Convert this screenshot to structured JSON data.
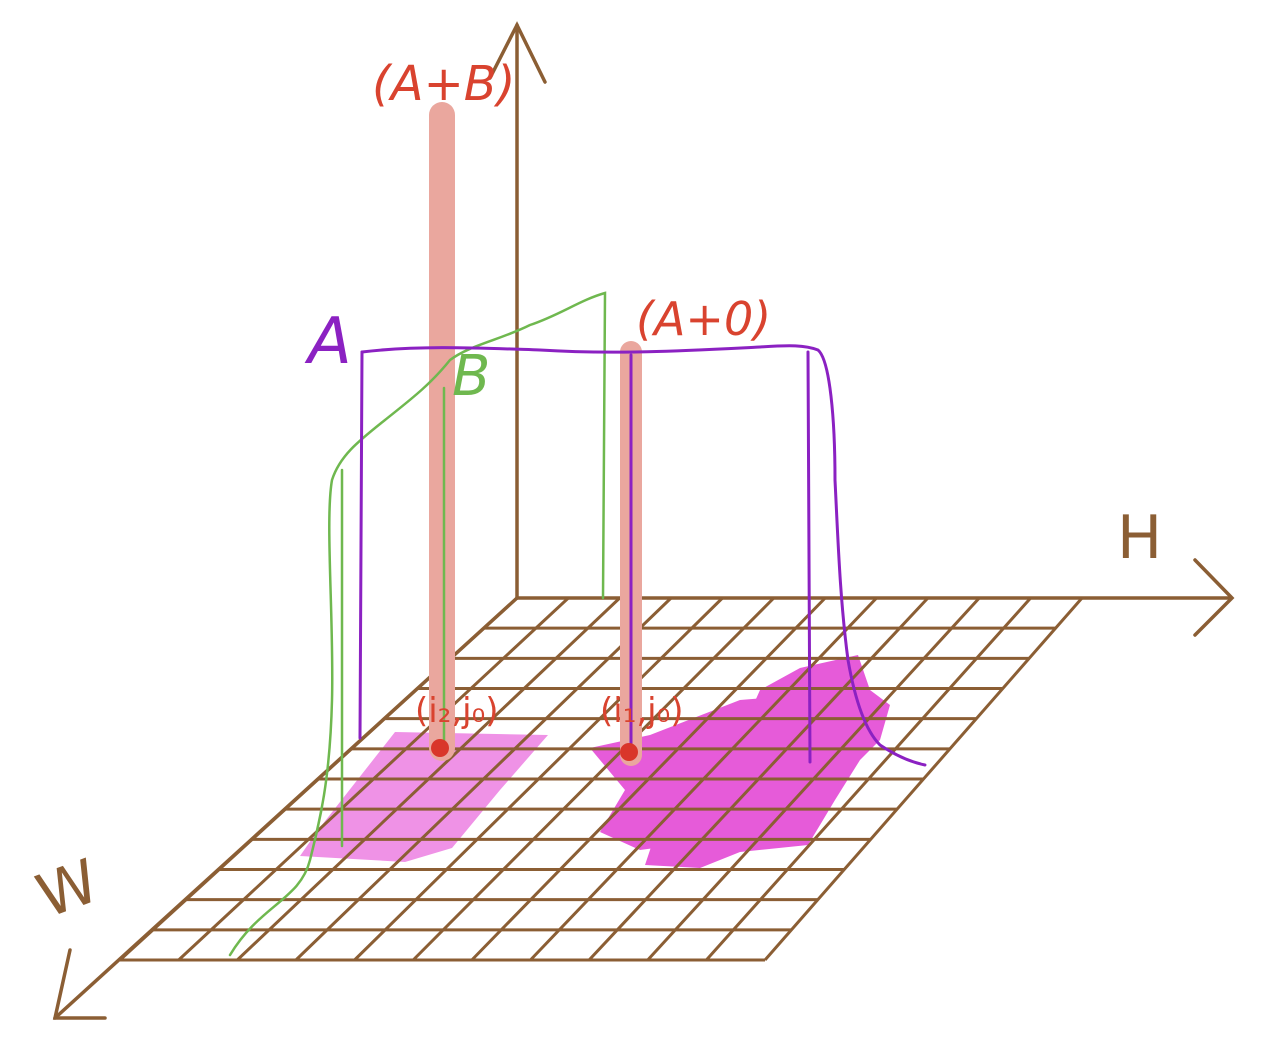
{
  "labels": {
    "a_plus_b": "(A+B)",
    "a_plus_0": "(A+0)",
    "a": "A",
    "b": "B",
    "h_axis": "H",
    "w_axis": "W",
    "point_1": "(i₂,j₀)",
    "point_2": "(i₁,j₀)"
  },
  "colors": {
    "axis": "#8b5e34",
    "grid": "#8b5e34",
    "red_text": "#d9432f",
    "bar": "#eaa79e",
    "purple": "#8b21c2",
    "green": "#6fb84f",
    "magenta_dark": "#e65bd9",
    "magenta_light": "#ef92e6",
    "dot": "#d9362a"
  }
}
